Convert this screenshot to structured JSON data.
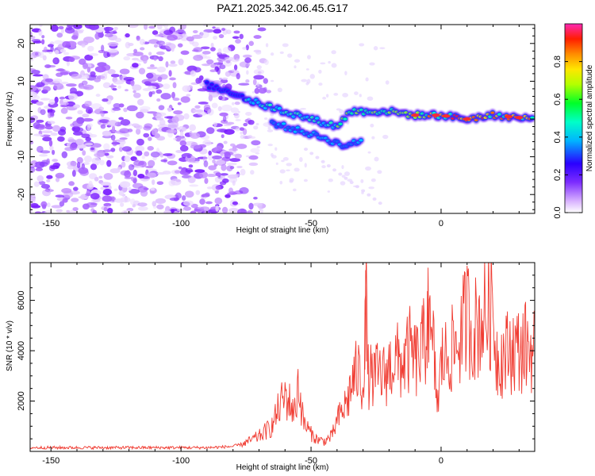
{
  "chart_data": [
    {
      "type": "heatmap",
      "title": "PAZ1.2025.342.06.45.G17",
      "xlabel": "Height of straight line (km)",
      "ylabel": "Frequency (Hz)",
      "xlim": [
        -158,
        36
      ],
      "ylim": [
        -25,
        25
      ],
      "xticks": [
        -150,
        -100,
        -50,
        0
      ],
      "yticks": [
        -20,
        -10,
        0,
        10,
        20
      ],
      "colorbar": {
        "label": "Normalized spectral amplitude",
        "range": [
          0.0,
          1.0
        ],
        "ticks": [
          0.0,
          0.2,
          0.4,
          0.6,
          0.8
        ],
        "colormap": "rainbow (magenta-purple-blue-cyan-green-yellow-orange-red-pink)"
      },
      "signal_ridge": {
        "description": "bright spectral ridge near 0 Hz",
        "points": [
          {
            "height_km": -90,
            "freq_hz": 9
          },
          {
            "height_km": -80,
            "freq_hz": 7
          },
          {
            "height_km": -70,
            "freq_hz": 4
          },
          {
            "height_km": -60,
            "freq_hz": 2
          },
          {
            "height_km": -50,
            "freq_hz": 0
          },
          {
            "height_km": -40,
            "freq_hz": -2
          },
          {
            "height_km": -35,
            "freq_hz": 2
          },
          {
            "height_km": -20,
            "freq_hz": 2
          },
          {
            "height_km": -10,
            "freq_hz": 1
          },
          {
            "height_km": 0,
            "freq_hz": 1
          },
          {
            "height_km": 10,
            "freq_hz": 0
          },
          {
            "height_km": 20,
            "freq_hz": 1
          },
          {
            "height_km": 36,
            "freq_hz": 0
          }
        ],
        "secondary_branch": [
          {
            "height_km": -65,
            "freq_hz": -1
          },
          {
            "height_km": -55,
            "freq_hz": -3
          },
          {
            "height_km": -45,
            "freq_hz": -5
          },
          {
            "height_km": -38,
            "freq_hz": -7
          },
          {
            "height_km": -30,
            "freq_hz": -6
          }
        ]
      },
      "noise_region": {
        "x_from_km": -158,
        "x_to_km": -78,
        "freq_range_hz": [
          -25,
          25
        ]
      }
    },
    {
      "type": "line",
      "xlabel": "Height of straight line (km)",
      "ylabel": "SNR (10 * v/v)",
      "xlim": [
        -158,
        36
      ],
      "ylim": [
        0,
        7500
      ],
      "xticks": [
        -150,
        -100,
        -50,
        0
      ],
      "yticks": [
        2000,
        4000,
        6000
      ],
      "series": [
        {
          "name": "SNR",
          "color": "#f03c32",
          "x": [
            -158,
            -150,
            -140,
            -130,
            -120,
            -110,
            -100,
            -90,
            -85,
            -80,
            -78,
            -75,
            -70,
            -65,
            -62,
            -60,
            -58,
            -56,
            -55,
            -53,
            -50,
            -48,
            -45,
            -42,
            -40,
            -38,
            -36,
            -34,
            -32,
            -30,
            -29,
            -28,
            -26,
            -24,
            -22,
            -20,
            -18,
            -16,
            -14,
            -12,
            -10,
            -8,
            -6,
            -5,
            -4,
            -3,
            -2,
            -1,
            0,
            1,
            2,
            4,
            6,
            8,
            10,
            12,
            14,
            16,
            18,
            20,
            21,
            22,
            24,
            26,
            28,
            30,
            32,
            34,
            36
          ],
          "y": [
            150,
            150,
            150,
            150,
            150,
            150,
            150,
            150,
            170,
            200,
            250,
            350,
            600,
            1000,
            1800,
            2200,
            1900,
            1500,
            2800,
            1200,
            700,
            500,
            400,
            600,
            1200,
            1600,
            2000,
            2800,
            3200,
            2600,
            6500,
            3000,
            2900,
            3100,
            3000,
            3300,
            3700,
            3500,
            3600,
            4000,
            3600,
            3800,
            4500,
            6600,
            3800,
            4200,
            2500,
            1900,
            3500,
            3800,
            3700,
            4000,
            4200,
            4700,
            5500,
            4800,
            5000,
            5300,
            5600,
            5800,
            4000,
            3700,
            3800,
            4000,
            4100,
            4000,
            4200,
            4100,
            4100
          ]
        }
      ]
    }
  ]
}
